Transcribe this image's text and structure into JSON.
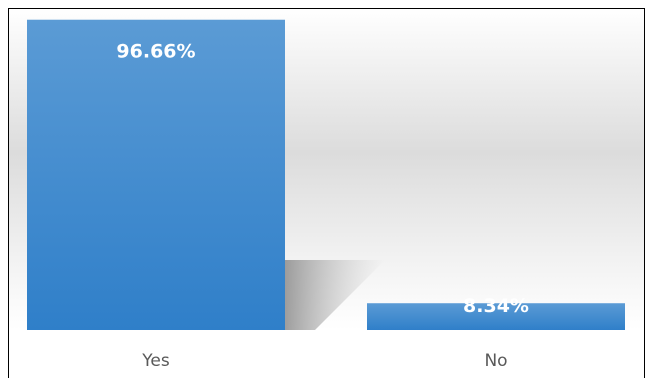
{
  "chart_data": {
    "type": "bar",
    "categories": [
      "Yes",
      "No"
    ],
    "values": [
      96.66,
      8.34
    ],
    "data_labels": [
      "96.66%",
      "8.34%"
    ],
    "ylim": [
      0,
      100
    ],
    "grid": false,
    "legend": "none",
    "colors": {
      "bar_top": "#5b9bd5",
      "bar_bottom": "#2f7fc9",
      "label": "#ffffff",
      "axis_text": "#595959",
      "border": "#000000"
    }
  }
}
